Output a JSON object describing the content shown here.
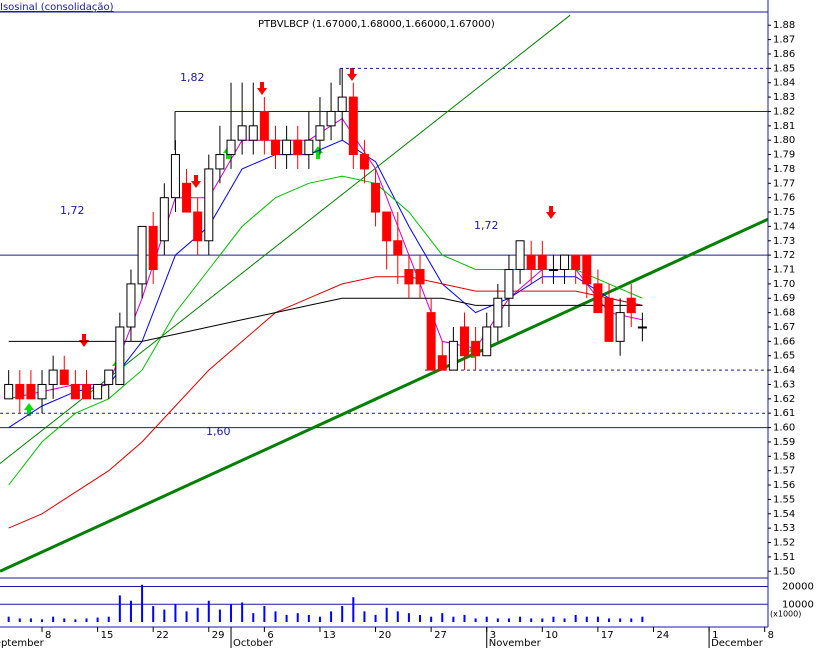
{
  "chart_data": {
    "type": "candlestick",
    "title": "PTBVLBCP (1.67000,1.68000,1.66000,1.67000)",
    "indicator_label": "Isosinal (consolidação)",
    "open": [
      1.62,
      1.63,
      1.63,
      1.62,
      1.63,
      1.64,
      1.63,
      1.63,
      1.62,
      1.63,
      1.63,
      1.67,
      1.7,
      1.74,
      1.73,
      1.76,
      1.77,
      1.75,
      1.73,
      1.78,
      1.79,
      1.8,
      1.8,
      1.82,
      1.8,
      1.79,
      1.8,
      1.79,
      1.8,
      1.81,
      1.82,
      1.83,
      1.79,
      1.77,
      1.75,
      1.73,
      1.71,
      1.71,
      1.68,
      1.65,
      1.64,
      1.67,
      1.66,
      1.65,
      1.67,
      1.69,
      1.71,
      1.72,
      1.72,
      1.71,
      1.71,
      1.72,
      1.72,
      1.7,
      1.69,
      1.66,
      1.69,
      1.67
    ],
    "high": [
      1.64,
      1.64,
      1.64,
      1.64,
      1.65,
      1.65,
      1.64,
      1.64,
      1.63,
      1.64,
      1.68,
      1.71,
      1.74,
      1.75,
      1.77,
      1.8,
      1.78,
      1.76,
      1.79,
      1.81,
      1.84,
      1.84,
      1.84,
      1.83,
      1.81,
      1.81,
      1.81,
      1.82,
      1.83,
      1.84,
      1.85,
      1.84,
      1.8,
      1.78,
      1.75,
      1.75,
      1.72,
      1.72,
      1.69,
      1.66,
      1.67,
      1.68,
      1.67,
      1.68,
      1.7,
      1.72,
      1.73,
      1.73,
      1.73,
      1.72,
      1.72,
      1.72,
      1.72,
      1.71,
      1.7,
      1.69,
      1.7,
      1.68
    ],
    "low": [
      1.62,
      1.61,
      1.62,
      1.61,
      1.62,
      1.63,
      1.62,
      1.62,
      1.62,
      1.62,
      1.63,
      1.66,
      1.69,
      1.7,
      1.72,
      1.75,
      1.75,
      1.72,
      1.72,
      1.77,
      1.78,
      1.79,
      1.79,
      1.79,
      1.78,
      1.78,
      1.78,
      1.78,
      1.79,
      1.8,
      1.8,
      1.78,
      1.77,
      1.74,
      1.71,
      1.7,
      1.69,
      1.69,
      1.64,
      1.64,
      1.64,
      1.64,
      1.64,
      1.65,
      1.66,
      1.67,
      1.7,
      1.7,
      1.7,
      1.7,
      1.7,
      1.7,
      1.69,
      1.68,
      1.66,
      1.65,
      1.67,
      1.66
    ],
    "close": [
      1.63,
      1.62,
      1.62,
      1.63,
      1.64,
      1.63,
      1.62,
      1.62,
      1.63,
      1.64,
      1.67,
      1.7,
      1.74,
      1.71,
      1.76,
      1.79,
      1.75,
      1.73,
      1.78,
      1.79,
      1.8,
      1.81,
      1.81,
      1.8,
      1.79,
      1.8,
      1.79,
      1.8,
      1.81,
      1.82,
      1.83,
      1.79,
      1.78,
      1.75,
      1.73,
      1.72,
      1.7,
      1.7,
      1.64,
      1.64,
      1.66,
      1.65,
      1.65,
      1.67,
      1.69,
      1.71,
      1.73,
      1.71,
      1.71,
      1.71,
      1.72,
      1.71,
      1.7,
      1.68,
      1.66,
      1.68,
      1.68,
      1.67
    ],
    "up_color": "#ffffff",
    "down_color": "#ff0000",
    "series": [
      {
        "color": "#d000d0",
        "x": [
          0,
          3,
          6,
          9,
          12,
          15,
          18,
          21,
          24,
          27,
          30,
          33,
          36,
          39,
          42,
          45,
          48,
          51,
          54,
          57
        ],
        "values": [
          1.62,
          1.625,
          1.63,
          1.63,
          1.69,
          1.76,
          1.76,
          1.8,
          1.8,
          1.8,
          1.815,
          1.78,
          1.72,
          1.66,
          1.655,
          1.69,
          1.71,
          1.71,
          1.68,
          1.675
        ]
      },
      {
        "color": "#0000ff",
        "x": [
          0,
          3,
          6,
          9,
          12,
          15,
          18,
          21,
          24,
          27,
          30,
          33,
          36,
          39,
          42,
          45,
          48,
          51,
          54,
          57
        ],
        "values": [
          1.6,
          1.615,
          1.625,
          1.63,
          1.66,
          1.72,
          1.74,
          1.78,
          1.79,
          1.79,
          1.8,
          1.785,
          1.74,
          1.7,
          1.68,
          1.69,
          1.705,
          1.705,
          1.69,
          1.685
        ]
      },
      {
        "color": "#00c000",
        "x": [
          0,
          3,
          6,
          9,
          12,
          15,
          18,
          21,
          24,
          27,
          30,
          33,
          36,
          39,
          42,
          45,
          48,
          51,
          54,
          57
        ],
        "values": [
          1.56,
          1.59,
          1.61,
          1.62,
          1.64,
          1.68,
          1.71,
          1.74,
          1.76,
          1.77,
          1.775,
          1.77,
          1.75,
          1.72,
          1.71,
          1.71,
          1.71,
          1.71,
          1.7,
          1.69
        ]
      },
      {
        "color": "#e00000",
        "x": [
          0,
          3,
          6,
          9,
          12,
          15,
          18,
          21,
          24,
          27,
          30,
          33,
          36,
          39,
          42,
          45,
          48,
          51,
          54,
          57
        ],
        "values": [
          1.53,
          1.54,
          1.555,
          1.57,
          1.59,
          1.615,
          1.64,
          1.66,
          1.68,
          1.69,
          1.7,
          1.705,
          1.705,
          1.7,
          1.695,
          1.695,
          1.695,
          1.695,
          1.69,
          1.685
        ]
      },
      {
        "color": "#000000",
        "x": [
          0,
          3,
          6,
          9,
          12,
          15,
          18,
          21,
          24,
          27,
          30,
          33,
          36,
          39,
          42,
          45,
          48,
          51,
          54,
          57
        ],
        "values": [
          1.66,
          1.66,
          1.66,
          1.66,
          1.66,
          1.665,
          1.67,
          1.675,
          1.68,
          1.685,
          1.69,
          1.69,
          1.69,
          1.69,
          1.685,
          1.685,
          1.685,
          1.685,
          1.685,
          1.685
        ]
      }
    ],
    "trendlines": [
      {
        "color": "#008000",
        "width": 3,
        "x": [
          -0.78,
          68.3
        ],
        "values": [
          1.5,
          1.745
        ]
      },
      {
        "color": "#008000",
        "width": 1,
        "x": [
          -0.78,
          50.5
        ],
        "values": [
          1.575,
          1.887
        ]
      }
    ],
    "hlines": [
      {
        "value": 1.85,
        "dashed": true,
        "color": "#1a1aa0"
      },
      {
        "value": 1.82,
        "dashed": false,
        "color": "#1a1aa0"
      },
      {
        "value": 1.72,
        "dashed": false,
        "color": "#1a1aa0"
      },
      {
        "value": 1.64,
        "dashed": true,
        "color": "#1a1aa0"
      },
      {
        "value": 1.61,
        "dashed": true,
        "color": "#1a1aa0"
      },
      {
        "value": 1.6,
        "dashed": false,
        "color": "#1a1aa0"
      }
    ],
    "annotations": [
      "1,82",
      "1,72",
      "1,72",
      "1,60"
    ],
    "xlim": [
      -0.78,
      68.3
    ],
    "xticks": [
      {
        "value": 3,
        "label": "8"
      },
      {
        "value": 8,
        "label": "15"
      },
      {
        "value": 13,
        "label": "22"
      },
      {
        "value": 18,
        "label": "29"
      },
      {
        "value": 23,
        "label": "6"
      },
      {
        "value": 28,
        "label": "13"
      },
      {
        "value": 33,
        "label": "20"
      },
      {
        "value": 38,
        "label": "27"
      },
      {
        "value": 43,
        "label": "3"
      },
      {
        "value": 48,
        "label": "10"
      },
      {
        "value": 53,
        "label": "17"
      },
      {
        "value": 58,
        "label": "24"
      },
      {
        "value": 63,
        "label": "1"
      },
      {
        "value": 68,
        "label": "8"
      }
    ],
    "month_ticks": [
      {
        "value": -2,
        "label": "September"
      },
      {
        "value": 20,
        "label": "October"
      },
      {
        "value": 43,
        "label": "November"
      },
      {
        "value": 63,
        "label": "December"
      }
    ],
    "ylim": [
      1.496,
      1.892
    ],
    "yticks": [
      {
        "value": 1.5,
        "label": "1.50"
      },
      1.51,
      1.52,
      1.53,
      1.54,
      1.55,
      1.56,
      1.57,
      1.58,
      1.59,
      {
        "value": 1.6,
        "label": "1.60"
      },
      1.61,
      1.62,
      1.63,
      1.64,
      1.65,
      1.66,
      1.67,
      1.68,
      1.69,
      {
        "value": 1.7,
        "label": "1.70"
      },
      1.71,
      1.72,
      1.73,
      1.74,
      1.75,
      1.76,
      1.77,
      1.78,
      1.79,
      {
        "value": 1.8,
        "label": "1.80"
      },
      1.81,
      1.82,
      1.83,
      1.84,
      1.85,
      1.86,
      1.87,
      1.88
    ],
    "volume": {
      "color": "#0000ff",
      "unit_label": "(x1000)",
      "values": [
        3000,
        2000,
        2000,
        1500,
        3000,
        2000,
        1500,
        2000,
        2500,
        3000,
        15000,
        12000,
        21000,
        9000,
        7000,
        10000,
        6000,
        8000,
        12000,
        7000,
        10000,
        11000,
        5000,
        9000,
        6000,
        4000,
        5000,
        4000,
        3000,
        6000,
        9000,
        14000,
        6000,
        4000,
        8000,
        6000,
        5000,
        4000,
        3000,
        5000,
        3000,
        4000,
        2000,
        3000,
        2000,
        2000,
        3000,
        2000,
        2000,
        3000,
        2000,
        4000,
        3000,
        3000,
        2000,
        2000,
        2000,
        3000
      ],
      "ylim": [
        0,
        22000
      ],
      "yticks": [
        10000,
        20000
      ]
    }
  }
}
